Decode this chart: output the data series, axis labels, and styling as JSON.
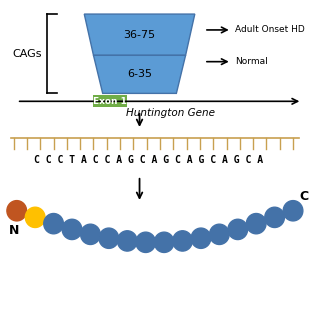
{
  "bg_color": "#ffffff",
  "trapezoid_color": "#5b9bd5",
  "trapezoid_line_color": "#4472a8",
  "exon_color": "#70ad47",
  "exon_text": "Exon 1",
  "label_36_75": "36-75",
  "label_6_35": "6-35",
  "cags_label": "CAGs",
  "adult_onset_label": "Adult Onset HD",
  "normal_label": "Normal",
  "huntington_gene_label": "Huntington Gene",
  "dna_sequence": "C C C T A C C A G C A G C A G C A G C A",
  "dna_color": "#c8a050",
  "blue_bead_color": "#4472a8",
  "orange_bead_color": "#c05520",
  "yellow_bead_color": "#ffc000",
  "N_label": "N",
  "C_label": "C"
}
